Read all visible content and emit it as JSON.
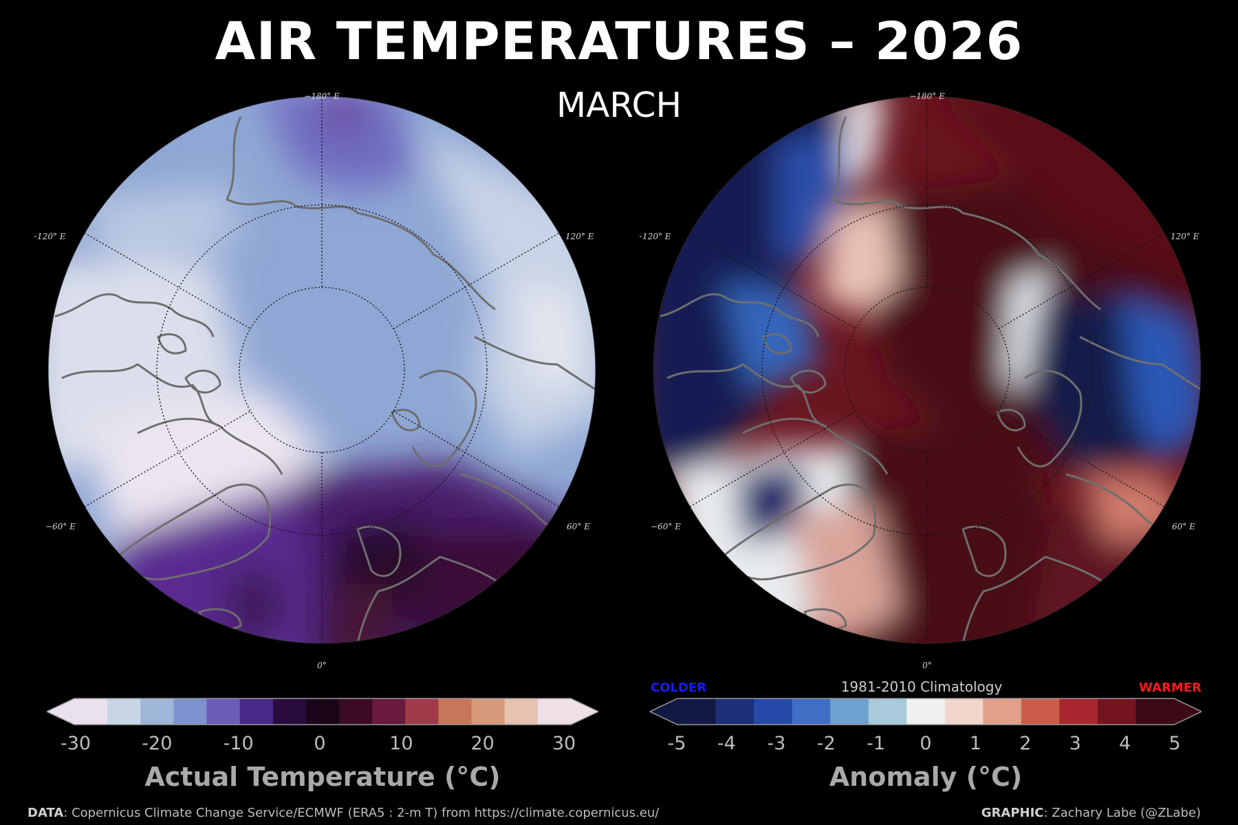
{
  "header": {
    "title": "AIR TEMPERATURES – 2026",
    "subtitle": "MARCH"
  },
  "left_map": {
    "lon_labels": {
      "top": "−180° E",
      "left_upper": "−120° E",
      "right_upper": "120° E",
      "left_lower": "−60° E",
      "right_lower": "60° E",
      "bottom": "0°"
    },
    "colorbar": {
      "ticks": [
        "-30",
        "-20",
        "-10",
        "0",
        "10",
        "20",
        "30"
      ],
      "label": "Actual Temperature (°C)",
      "colors": [
        "#e9e1ee",
        "#c9d6e6",
        "#9fb6d8",
        "#7d92cf",
        "#6b5cb8",
        "#4a2a88",
        "#2a0b3e",
        "#1a0618",
        "#3a0a26",
        "#6a1a3c",
        "#a13a4a",
        "#c8765a",
        "#d69a7a",
        "#e6c2b2",
        "#efe0e8"
      ]
    }
  },
  "right_map": {
    "lon_labels": {
      "top": "−180° E",
      "left_upper": "−120° E",
      "right_upper": "120° E",
      "left_lower": "−60° E",
      "right_lower": "60° E",
      "bottom": "0°"
    },
    "colorbar": {
      "ticks": [
        "-5",
        "-4",
        "-3",
        "-2",
        "-1",
        "0",
        "1",
        "2",
        "3",
        "4",
        "5"
      ],
      "label": "Anomaly (°C)",
      "colder": "COLDER",
      "warmer": "WARMER",
      "climatology": "1981-2010 Climatology",
      "colors": [
        "#121a44",
        "#1c2f78",
        "#2449a8",
        "#3f6fc4",
        "#6ea0d0",
        "#a8cadb",
        "#eef0f0",
        "#f1d6cc",
        "#e2a08a",
        "#cc5c4a",
        "#a8262d",
        "#741420",
        "#3c0a14"
      ]
    }
  },
  "footer": {
    "data_label": "DATA",
    "data_text": ": Copernicus Climate Change Service/ECMWF (ERA5 : 2-m T) from https://climate.copernicus.eu/",
    "graphic_label": "GRAPHIC",
    "graphic_text": ": Zachary Labe (@ZLabe)"
  }
}
